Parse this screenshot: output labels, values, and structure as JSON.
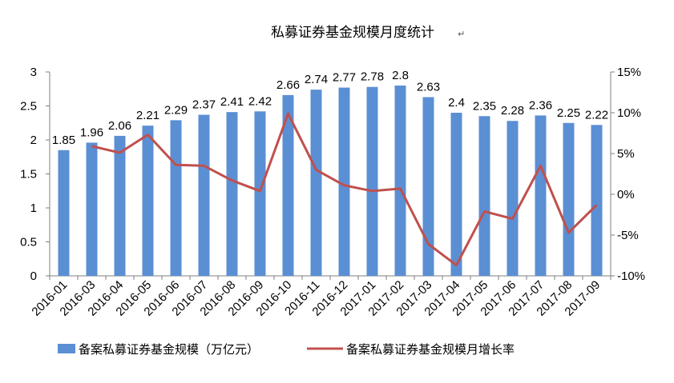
{
  "colors": {
    "bar": "#5B8FD4",
    "line": "#C0504D",
    "axis": "#7f7f7f"
  },
  "chart_data": {
    "type": "bar",
    "title": "私募证券基金规模月度统计",
    "title_mark": "↵",
    "categories": [
      "2016-01",
      "2016-03",
      "2016-04",
      "2016-05",
      "2016-06",
      "2016-07",
      "2016-08",
      "2016-09",
      "2016-10",
      "2016-11",
      "2016-12",
      "2017-01",
      "2017-02",
      "2017-03",
      "2017-04",
      "2017-05",
      "2017-06",
      "2017-07",
      "2017-08",
      "2017-09"
    ],
    "series": [
      {
        "name": "备案私募证券基金规模（万亿元）",
        "type": "bar",
        "axis": "left",
        "values": [
          1.85,
          1.96,
          2.06,
          2.21,
          2.29,
          2.37,
          2.41,
          2.42,
          2.66,
          2.74,
          2.77,
          2.78,
          2.8,
          2.63,
          2.4,
          2.35,
          2.28,
          2.36,
          2.25,
          2.22
        ],
        "labels": [
          "1.85",
          "1.96",
          "2.06",
          "2.21",
          "2.29",
          "2.37",
          "2.41",
          "2.42",
          "2.66",
          "2.74",
          "2.77",
          "2.78",
          "2.8",
          "2.63",
          "2.4",
          "2.35",
          "2.28",
          "2.36",
          "2.25",
          "2.22"
        ]
      },
      {
        "name": "备案私募证券基金规模月增长率",
        "type": "line",
        "axis": "right",
        "values": [
          null,
          5.9,
          5.1,
          7.3,
          3.6,
          3.5,
          1.7,
          0.4,
          9.9,
          3.0,
          1.1,
          0.4,
          0.7,
          -6.1,
          -8.7,
          -2.1,
          -3.0,
          3.5,
          -4.7,
          -1.3
        ]
      }
    ],
    "ylim_left": [
      0,
      3
    ],
    "yticks_left": [
      "0",
      "0.5",
      "1",
      "1.5",
      "2",
      "2.5",
      "3"
    ],
    "ylim_right": [
      -10,
      15
    ],
    "yticks_right": [
      "-10%",
      "-5%",
      "0%",
      "5%",
      "10%",
      "15%"
    ],
    "legend_position": "bottom",
    "grid": false
  }
}
